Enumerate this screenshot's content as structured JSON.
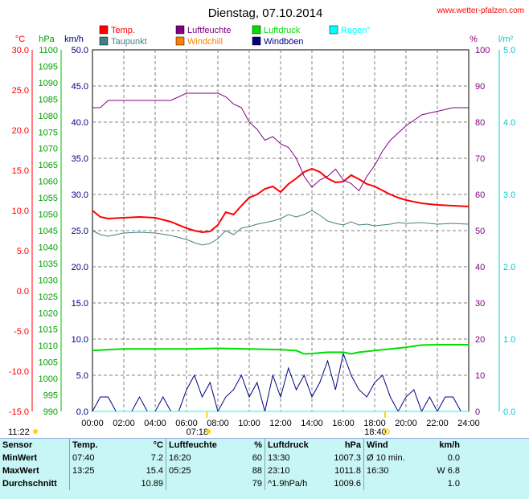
{
  "header": {
    "title": "Dienstag, 07.10.2014",
    "site": "www.wetter-pfalzen.com"
  },
  "legend": [
    {
      "label": "Temp.",
      "color": "#ff0000"
    },
    {
      "label": "Luftfeuchte",
      "color": "#800080"
    },
    {
      "label": "Luftdruck",
      "color": "#00e000"
    },
    {
      "label": "Regen°",
      "color": "#00ffff"
    },
    {
      "label": "Taupunkt",
      "color": "#408080"
    },
    {
      "label": "Windchill",
      "color": "#ff8000"
    },
    {
      "label": "Windböen",
      "color": "#000080"
    }
  ],
  "axes": {
    "temp": {
      "unit": "°C",
      "ticks": [
        "30.0",
        "25.0",
        "20.0",
        "15.0",
        "10.0",
        "5.0",
        "0.0",
        "-5.0",
        "-10.0",
        "-15.0"
      ],
      "color": "#ff0000"
    },
    "pressure": {
      "unit": "hPa",
      "ticks": [
        "1100",
        "1095",
        "1090",
        "1085",
        "1080",
        "1075",
        "1070",
        "1065",
        "1060",
        "1055",
        "1050",
        "1045",
        "1040",
        "1035",
        "1030",
        "1025",
        "1020",
        "1015",
        "1010",
        "1005",
        "1000",
        "995",
        "990"
      ],
      "color": "#00a000"
    },
    "wind": {
      "unit": "km/h",
      "ticks": [
        "50.0",
        "45.0",
        "40.0",
        "35.0",
        "30.0",
        "25.0",
        "20.0",
        "15.0",
        "10.0",
        "5.0",
        "0.0"
      ],
      "color": "#000080"
    },
    "humidity": {
      "unit": "%",
      "ticks": [
        "100",
        "90",
        "80",
        "70",
        "60",
        "50",
        "40",
        "30",
        "20",
        "10",
        "0"
      ],
      "color": "#800080"
    },
    "rain": {
      "unit": "l/m²",
      "ticks": [
        "5.0",
        "4.0",
        "3.0",
        "2.0",
        "1.0",
        "0.0"
      ],
      "color": "#00cccc"
    },
    "time": [
      "00:00",
      "02:00",
      "04:00",
      "06:00",
      "08:00",
      "10:00",
      "12:00",
      "14:00",
      "16:00",
      "18:00",
      "20:00",
      "22:00",
      "24:00"
    ]
  },
  "sun": {
    "moonrise": "11:22",
    "sunrise": "07:18",
    "sunset": "18:40"
  },
  "chart_data": {
    "type": "line",
    "x_unit": "hours",
    "xlim": [
      0,
      24
    ],
    "series": [
      {
        "name": "Temp.",
        "axis": "temp",
        "color": "#ff0000",
        "x": [
          0,
          0.5,
          1,
          2,
          3,
          4,
          5,
          6,
          6.5,
          7,
          7.5,
          8,
          8.5,
          9,
          9.5,
          10,
          10.5,
          11,
          11.5,
          12,
          12.5,
          13,
          13.5,
          14,
          14.5,
          15,
          15.5,
          16,
          16.5,
          17,
          17.5,
          18,
          18.5,
          19,
          19.5,
          20,
          21,
          22,
          23,
          24
        ],
        "y": [
          10,
          9.2,
          9.0,
          9.1,
          9.2,
          9.1,
          8.6,
          7.8,
          7.5,
          7.3,
          7.4,
          8.2,
          9.8,
          9.5,
          10.6,
          11.6,
          12.0,
          12.7,
          13.0,
          12.3,
          13.3,
          14.0,
          14.8,
          15.2,
          14.8,
          14.0,
          13.5,
          13.6,
          14.4,
          13.9,
          13.3,
          13.0,
          12.5,
          12.0,
          11.6,
          11.3,
          10.9,
          10.7,
          10.6,
          10.5
        ]
      },
      {
        "name": "Taupunkt",
        "axis": "temp",
        "color": "#408080",
        "x": [
          0,
          0.5,
          1,
          2,
          3,
          4,
          5,
          6,
          6.5,
          7,
          7.5,
          8,
          8.5,
          9,
          9.5,
          10,
          10.5,
          11,
          11.5,
          12,
          12.5,
          13,
          13.5,
          14,
          14.5,
          15,
          15.5,
          16,
          16.5,
          17,
          17.5,
          18,
          18.5,
          19,
          19.5,
          20,
          21,
          22,
          23,
          24
        ],
        "y": [
          7.5,
          7.0,
          6.8,
          7.2,
          7.3,
          7.2,
          6.9,
          6.4,
          6.0,
          5.7,
          5.9,
          6.5,
          7.5,
          7.0,
          7.8,
          8.0,
          8.3,
          8.5,
          8.7,
          9.0,
          9.5,
          9.2,
          9.5,
          10.0,
          9.4,
          8.7,
          8.4,
          8.2,
          8.6,
          8.2,
          8.3,
          8.1,
          8.2,
          8.3,
          8.5,
          8.4,
          8.5,
          8.3,
          8.4,
          8.3
        ]
      },
      {
        "name": "Luftfeuchte",
        "axis": "humidity",
        "color": "#800080",
        "x": [
          0,
          0.5,
          1,
          2,
          3,
          4,
          5,
          6,
          7,
          8,
          8.5,
          9,
          9.5,
          10,
          10.5,
          11,
          11.5,
          12,
          12.5,
          13,
          13.5,
          14,
          14.5,
          15,
          15.5,
          16,
          16.5,
          17,
          17.5,
          18,
          18.5,
          19,
          19.5,
          20,
          21,
          22,
          23,
          24
        ],
        "y": [
          84,
          84,
          86,
          86,
          86,
          86,
          86,
          88,
          88,
          88,
          87,
          85,
          84,
          80,
          78,
          75,
          76,
          74,
          73,
          70,
          65,
          62,
          64,
          65,
          67,
          64,
          63,
          61,
          65,
          68,
          72,
          75,
          77,
          79,
          82,
          83,
          84,
          84
        ]
      },
      {
        "name": "Luftdruck",
        "axis": "pressure",
        "color": "#00e000",
        "x": [
          0,
          1,
          2,
          4,
          6,
          8,
          10,
          12,
          13,
          13.5,
          14,
          15,
          16,
          16.5,
          17,
          18,
          19,
          20,
          21,
          22,
          23,
          24
        ],
        "y": [
          1008.5,
          1008.8,
          1009.0,
          1009.0,
          1009.0,
          1009.2,
          1009.0,
          1008.8,
          1008.5,
          1007.5,
          1007.6,
          1008.0,
          1008.0,
          1007.5,
          1008.0,
          1008.5,
          1009.0,
          1009.5,
          1010.2,
          1010.3,
          1010.3,
          1010.3
        ]
      },
      {
        "name": "Windböen",
        "axis": "wind",
        "color": "#000080",
        "x": [
          0,
          0.5,
          1,
          1.5,
          2,
          2.5,
          3,
          3.5,
          4,
          4.5,
          5,
          5.5,
          6,
          6.5,
          7,
          7.5,
          8,
          8.5,
          9,
          9.5,
          10,
          10.5,
          11,
          11.5,
          12,
          12.5,
          13,
          13.5,
          14,
          14.5,
          15,
          15.5,
          16,
          16.5,
          17,
          17.5,
          18,
          18.5,
          19,
          19.5,
          20,
          20.5,
          21,
          21.5,
          22,
          22.5,
          23,
          23.5,
          24
        ],
        "y": [
          0,
          2.0,
          2.0,
          0,
          0,
          0,
          2.0,
          0,
          0,
          2.0,
          0,
          0,
          3.0,
          5.0,
          2.0,
          4.0,
          0,
          2.0,
          3.0,
          5.0,
          2.0,
          4.0,
          0,
          5.0,
          2.0,
          6.0,
          3.0,
          5.0,
          2.0,
          4.0,
          7.0,
          3.0,
          8.0,
          5.0,
          3.0,
          2.0,
          4.0,
          5.0,
          2.0,
          0,
          2.0,
          3.0,
          0,
          2.0,
          0,
          2.0,
          2.0,
          0,
          0
        ]
      },
      {
        "name": "Regen°",
        "axis": "rain",
        "color": "#00ffff",
        "x": [
          0,
          24
        ],
        "y": [
          0,
          0
        ]
      }
    ]
  },
  "stats": {
    "headers": {
      "sensor": "Sensor",
      "temp": "Temp.",
      "temp_unit": "°C",
      "hum": "Luftfeuchte",
      "hum_unit": "%",
      "press": "Luftdruck",
      "press_unit": "hPa",
      "wind": "Wind",
      "wind_unit": "km/h"
    },
    "rows": [
      {
        "label": "MinWert",
        "t_time": "07:40",
        "t_val": "7.2",
        "h_time": "16:20",
        "h_val": "60",
        "p_time": "13:30",
        "p_val": "1007.3",
        "w_time": "Ø 10 min.",
        "w_val": "0.0"
      },
      {
        "label": "MaxWert",
        "t_time": "13:25",
        "t_val": "15.4",
        "h_time": "05:25",
        "h_val": "88",
        "p_time": "23:10",
        "p_val": "1011.8",
        "w_time": "16:30",
        "w_val": "W 6.8"
      },
      {
        "label": "Durchschnitt",
        "t_time": "",
        "t_val": "10.89",
        "h_time": "",
        "h_val": "79",
        "p_time": "^1.9hPa/h",
        "p_val": "1009.6",
        "w_time": "",
        "w_val": "1.0"
      }
    ]
  }
}
